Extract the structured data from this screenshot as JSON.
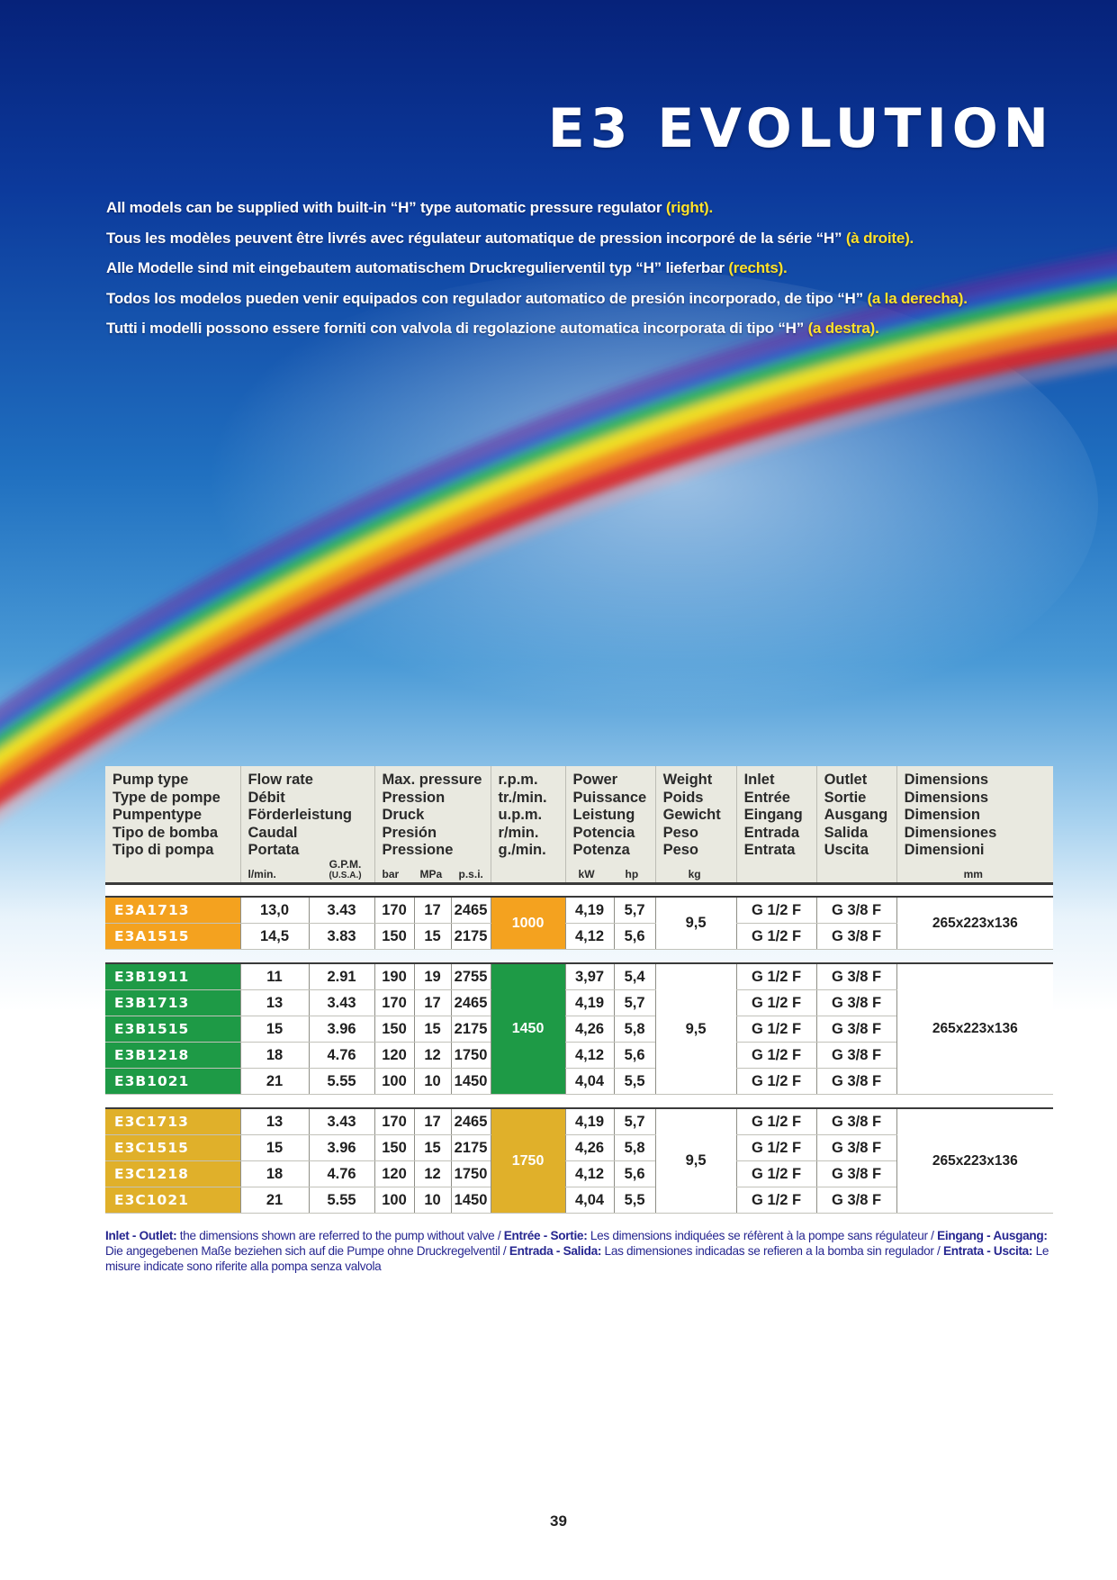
{
  "page": {
    "title": "E3 EVOLUTION",
    "page_number": "39"
  },
  "colors": {
    "sky_top": "#0a2c8c",
    "sky_mid": "#2a7fc8",
    "sky_bottom": "#ffffff",
    "highlight": "#ffe22a",
    "series_a": "#f4a21f",
    "series_b": "#1e9a46",
    "series_c": "#e0b02a",
    "footnote": "#262690"
  },
  "intro": [
    {
      "text": "All models can be supplied with built-in “H” type automatic pressure regulator ",
      "highlight": "(right)."
    },
    {
      "text": "Tous les modèles peuvent être livrés avec régulateur automatique de pression incorporé de la série “H” ",
      "highlight": "(à droite)."
    },
    {
      "text": "Alle Modelle sind mit eingebautem automatischem Druckregulierventil typ “H” lieferbar ",
      "highlight": "(rechts)."
    },
    {
      "text": "Todos los modelos pueden venir equipados con regulador automatico de presión incorporado, de tipo “H” ",
      "highlight": "(a la derecha)."
    },
    {
      "text": "Tutti i modelli possono essere forniti con valvola di regolazione automatica incorporata di tipo “H” ",
      "highlight": "(a destra)."
    }
  ],
  "table": {
    "headers": {
      "pump": "Pump type\nType de pompe\nPumpentype\nTipo de bomba\nTipo di pompa",
      "flow": "Flow rate\nDébit\nFörderleistung\nCaudal\nPortata",
      "pressure": "Max. pressure\nPression\nDruck\nPresión\nPressione",
      "rpm": "r.p.m.\ntr./min.\nu.p.m.\nr/min.\ng./min.",
      "power": "Power\nPuissance\nLeistung\nPotencia\nPotenza",
      "weight": "Weight\nPoids\nGewicht\nPeso\nPeso",
      "inlet": "Inlet\nEntrée\nEingang\nEntrada\nEntrata",
      "outlet": "Outlet\nSortie\nAusgang\nSalida\nUscita",
      "dimensions": "Dimensions\nDimensions\nDimension\nDimensiones\nDimensioni"
    },
    "units": {
      "lmin": "l/min.",
      "gpm": "G.P.M.",
      "gpm_sub": "(U.S.A.)",
      "bar": "bar",
      "mpa": "MPa",
      "psi": "p.s.i.",
      "kw": "kW",
      "hp": "hp",
      "kg": "kg",
      "mm": "mm"
    },
    "groups": {
      "a": {
        "rpm": "1000",
        "weight": "9,5",
        "dimensions": "265x223x136",
        "rows": [
          {
            "model": "E3A1713",
            "lmin": "13,0",
            "gpm": "3.43",
            "bar": "170",
            "mpa": "17",
            "psi": "2465",
            "kw": "4,19",
            "hp": "5,7",
            "inlet": "G 1/2 F",
            "outlet": "G 3/8 F"
          },
          {
            "model": "E3A1515",
            "lmin": "14,5",
            "gpm": "3.83",
            "bar": "150",
            "mpa": "15",
            "psi": "2175",
            "kw": "4,12",
            "hp": "5,6",
            "inlet": "G 1/2 F",
            "outlet": "G 3/8 F"
          }
        ]
      },
      "b": {
        "rpm": "1450",
        "weight": "9,5",
        "dimensions": "265x223x136",
        "rows": [
          {
            "model": "E3B1911",
            "lmin": "11",
            "gpm": "2.91",
            "bar": "190",
            "mpa": "19",
            "psi": "2755",
            "kw": "3,97",
            "hp": "5,4",
            "inlet": "G 1/2 F",
            "outlet": "G 3/8 F"
          },
          {
            "model": "E3B1713",
            "lmin": "13",
            "gpm": "3.43",
            "bar": "170",
            "mpa": "17",
            "psi": "2465",
            "kw": "4,19",
            "hp": "5,7",
            "inlet": "G 1/2 F",
            "outlet": "G 3/8 F"
          },
          {
            "model": "E3B1515",
            "lmin": "15",
            "gpm": "3.96",
            "bar": "150",
            "mpa": "15",
            "psi": "2175",
            "kw": "4,26",
            "hp": "5,8",
            "inlet": "G 1/2 F",
            "outlet": "G 3/8 F"
          },
          {
            "model": "E3B1218",
            "lmin": "18",
            "gpm": "4.76",
            "bar": "120",
            "mpa": "12",
            "psi": "1750",
            "kw": "4,12",
            "hp": "5,6",
            "inlet": "G 1/2 F",
            "outlet": "G 3/8 F"
          },
          {
            "model": "E3B1021",
            "lmin": "21",
            "gpm": "5.55",
            "bar": "100",
            "mpa": "10",
            "psi": "1450",
            "kw": "4,04",
            "hp": "5,5",
            "inlet": "G 1/2 F",
            "outlet": "G 3/8 F"
          }
        ]
      },
      "c": {
        "rpm": "1750",
        "weight": "9,5",
        "dimensions": "265x223x136",
        "rows": [
          {
            "model": "E3C1713",
            "lmin": "13",
            "gpm": "3.43",
            "bar": "170",
            "mpa": "17",
            "psi": "2465",
            "kw": "4,19",
            "hp": "5,7",
            "inlet": "G 1/2 F",
            "outlet": "G 3/8 F"
          },
          {
            "model": "E3C1515",
            "lmin": "15",
            "gpm": "3.96",
            "bar": "150",
            "mpa": "15",
            "psi": "2175",
            "kw": "4,26",
            "hp": "5,8",
            "inlet": "G 1/2 F",
            "outlet": "G 3/8 F"
          },
          {
            "model": "E3C1218",
            "lmin": "18",
            "gpm": "4.76",
            "bar": "120",
            "mpa": "12",
            "psi": "1750",
            "kw": "4,12",
            "hp": "5,6",
            "inlet": "G 1/2 F",
            "outlet": "G 3/8 F"
          },
          {
            "model": "E3C1021",
            "lmin": "21",
            "gpm": "5.55",
            "bar": "100",
            "mpa": "10",
            "psi": "1450",
            "kw": "4,04",
            "hp": "5,5",
            "inlet": "G 1/2 F",
            "outlet": "G 3/8 F"
          }
        ]
      }
    }
  },
  "footnote": [
    {
      "b": "Inlet - Outlet:",
      "t": " the dimensions shown are referred to the pump without valve / "
    },
    {
      "b": "Entrée - Sortie:",
      "t": " Les dimensions indiquées se réfèrent à la pompe sans régulateur / "
    },
    {
      "b": "Eingang - Ausgang:",
      "t": " Die angegebenen Maße beziehen sich auf die Pumpe ohne Druckregelventil / "
    },
    {
      "b": "Entrada - Salida:",
      "t": " Las dimensiones indicadas se refieren a la bomba sin regulador / "
    },
    {
      "b": "Entrata - Uscita:",
      "t": " Le misure indicate sono riferite alla pompa senza valvola"
    }
  ]
}
